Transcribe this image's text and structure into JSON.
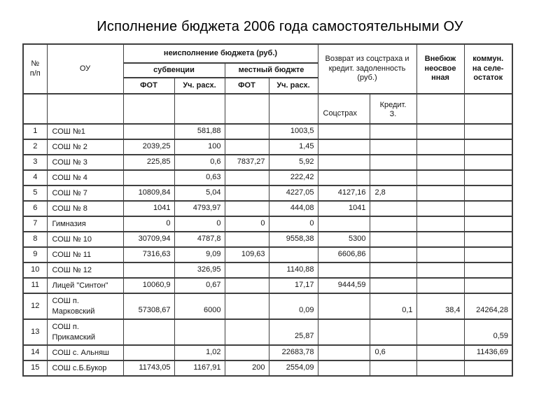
{
  "title": "Исполнение бюджета 2006 года самостоятельными ОУ",
  "colors": {
    "border": "#3f3f3f",
    "text": "#151515",
    "background": "#ffffff"
  },
  "table": {
    "headers": {
      "num": "№\nп/п",
      "ou": "ОУ",
      "neispolnenie": "неисполнение бюджета (руб.)",
      "subvencii": "субвенции",
      "mestny": "местный бюджте",
      "fot_sub": "ФОТ",
      "uch_sub": "Уч. расх.",
      "fot_mest": "ФОТ",
      "uch_mest": "Уч. расх.",
      "vozvrat": "Возврат из соцстраха и\nкредит. задоленность\n(руб.)",
      "socstrah": "Соцстрах",
      "kredit": "Кредит.\nЗ.",
      "vnebudzh": "Внебюж\nнеосвое\nнная",
      "kommun": "коммун.\nна селе-\nостаток"
    },
    "value_columns": [
      "ФОТ субвенции",
      "Уч. расх. субвенции",
      "ФОТ местный бюджет",
      "Уч. расх. местный бюджет",
      "Соцстрах",
      "Кредит. З.",
      "Внебюдж неосвоенная",
      "коммун. на селе-остаток"
    ],
    "rows": [
      {
        "n": "1",
        "name": "СОШ №1",
        "cells": [
          "",
          "581,88",
          "",
          "1003,5",
          "",
          "",
          "",
          ""
        ]
      },
      {
        "n": "2",
        "name": "СОШ № 2",
        "cells": [
          "2039,25",
          "100",
          "",
          "1,45",
          "",
          "",
          "",
          ""
        ]
      },
      {
        "n": "3",
        "name": "СОШ № 3",
        "cells": [
          "225,85",
          "0,6",
          "7837,27",
          "5,92",
          "",
          "",
          "",
          ""
        ]
      },
      {
        "n": "4",
        "name": "СОШ № 4",
        "cells": [
          "",
          "0,63",
          "",
          "222,42",
          "",
          "",
          "",
          ""
        ]
      },
      {
        "n": "5",
        "name": "СОШ № 7",
        "cells": [
          "10809,84",
          "5,04",
          "",
          "4227,05",
          "4127,16",
          "2,8",
          "",
          ""
        ],
        "left": [
          5
        ]
      },
      {
        "n": "6",
        "name": "СОШ № 8",
        "cells": [
          "1041",
          "4793,97",
          "",
          "444,08",
          "1041",
          "",
          "",
          ""
        ]
      },
      {
        "n": "7",
        "name": "Гимназия",
        "cells": [
          "0",
          "0",
          "0",
          "0",
          "",
          "",
          "",
          ""
        ]
      },
      {
        "n": "8",
        "name": "СОШ № 10",
        "cells": [
          "30709,94",
          "4787,8",
          "",
          "9558,38",
          "5300",
          "",
          "",
          ""
        ]
      },
      {
        "n": "9",
        "name": "СОШ № 11",
        "cells": [
          "7316,63",
          "9,09",
          "109,63",
          "",
          "6606,86",
          "",
          "",
          ""
        ]
      },
      {
        "n": "10",
        "name": "СОШ № 12",
        "cells": [
          "",
          "326,95",
          "",
          "1140,88",
          "",
          "",
          "",
          ""
        ]
      },
      {
        "n": "11",
        "name": "Лицей \"Синтон\"",
        "cells": [
          "10060,9",
          "0,67",
          "",
          "17,17",
          "9444,59",
          "",
          "",
          ""
        ]
      },
      {
        "n": "12",
        "name": "СОШ п.\nМарковский",
        "cells": [
          "57308,67",
          "6000",
          "",
          "0,09",
          "",
          "0,1",
          "38,4",
          "24264,28"
        ],
        "tall": true
      },
      {
        "n": "13",
        "name": "СОШ п.\nПрикамский",
        "cells": [
          "",
          "",
          "",
          "25,87",
          "",
          "",
          "",
          "0,59"
        ],
        "tall": true
      },
      {
        "n": "14",
        "name": "СОШ с. Альняш",
        "cells": [
          "",
          "1,02",
          "",
          "22683,78",
          "",
          "0,6",
          "",
          "11436,69"
        ],
        "left": [
          5
        ]
      },
      {
        "n": "15",
        "name": "СОШ с.Б.Букор",
        "cells": [
          "11743,05",
          "1167,91",
          "200",
          "2554,09",
          "",
          "",
          "",
          ""
        ]
      }
    ]
  }
}
